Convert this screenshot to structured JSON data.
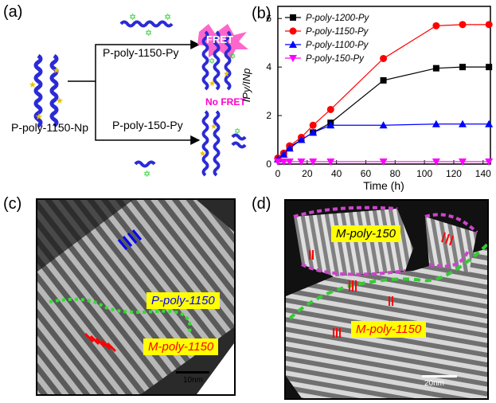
{
  "panels": {
    "a": "(a)",
    "b": "(b)",
    "c": "(c)",
    "d": "(d)"
  },
  "scheme": {
    "start_label": "P-poly-1150-Np",
    "top_arrow_label": "P-poly-1150-Py",
    "bottom_arrow_label": "P-poly-150-Py",
    "fret": "FRET",
    "no_fret": "No FRET"
  },
  "chart_data": {
    "type": "line",
    "xlabel": "Time (h)",
    "ylabel": "IPy/INp",
    "xlim": [
      0,
      145
    ],
    "ylim": [
      0,
      6.5
    ],
    "xticks": [
      0,
      20,
      40,
      60,
      80,
      100,
      120,
      140
    ],
    "yticks": [
      0,
      2,
      4,
      6
    ],
    "legend_position": "top-left",
    "series": [
      {
        "name": "P-poly-1200-Py",
        "color": "#000000",
        "marker": "square",
        "x": [
          0,
          4,
          8,
          16,
          24,
          36,
          72,
          108,
          126,
          144
        ],
        "y": [
          0.2,
          0.4,
          0.7,
          1.0,
          1.3,
          1.7,
          3.45,
          3.95,
          4.0,
          4.0
        ]
      },
      {
        "name": "P-poly-1150-Py",
        "color": "#ff0000",
        "marker": "circle",
        "x": [
          0,
          4,
          8,
          16,
          24,
          36,
          72,
          108,
          126,
          144
        ],
        "y": [
          0.25,
          0.45,
          0.75,
          1.1,
          1.6,
          2.25,
          4.35,
          5.7,
          5.75,
          5.75
        ]
      },
      {
        "name": "P-poly-1100-Py",
        "color": "#0000ff",
        "marker": "triangle-up",
        "x": [
          0,
          4,
          8,
          16,
          24,
          36,
          72,
          108,
          126,
          144
        ],
        "y": [
          0.2,
          0.4,
          0.65,
          1.0,
          1.3,
          1.6,
          1.6,
          1.65,
          1.65,
          1.65
        ]
      },
      {
        "name": "P-poly-150-Py",
        "color": "#ff00ff",
        "marker": "triangle-down",
        "x": [
          0,
          4,
          8,
          16,
          24,
          36,
          72,
          108,
          126,
          144
        ],
        "y": [
          0.1,
          0.1,
          0.1,
          0.1,
          0.1,
          0.1,
          0.1,
          0.1,
          0.1,
          0.1
        ]
      }
    ]
  },
  "afm_c": {
    "label_p": "P-poly-1150",
    "label_m": "M-poly-1150",
    "scale": "10nm"
  },
  "afm_d": {
    "label_m50": "M-poly-150",
    "label_m150": "M-poly-1150",
    "scale": "20nm"
  }
}
